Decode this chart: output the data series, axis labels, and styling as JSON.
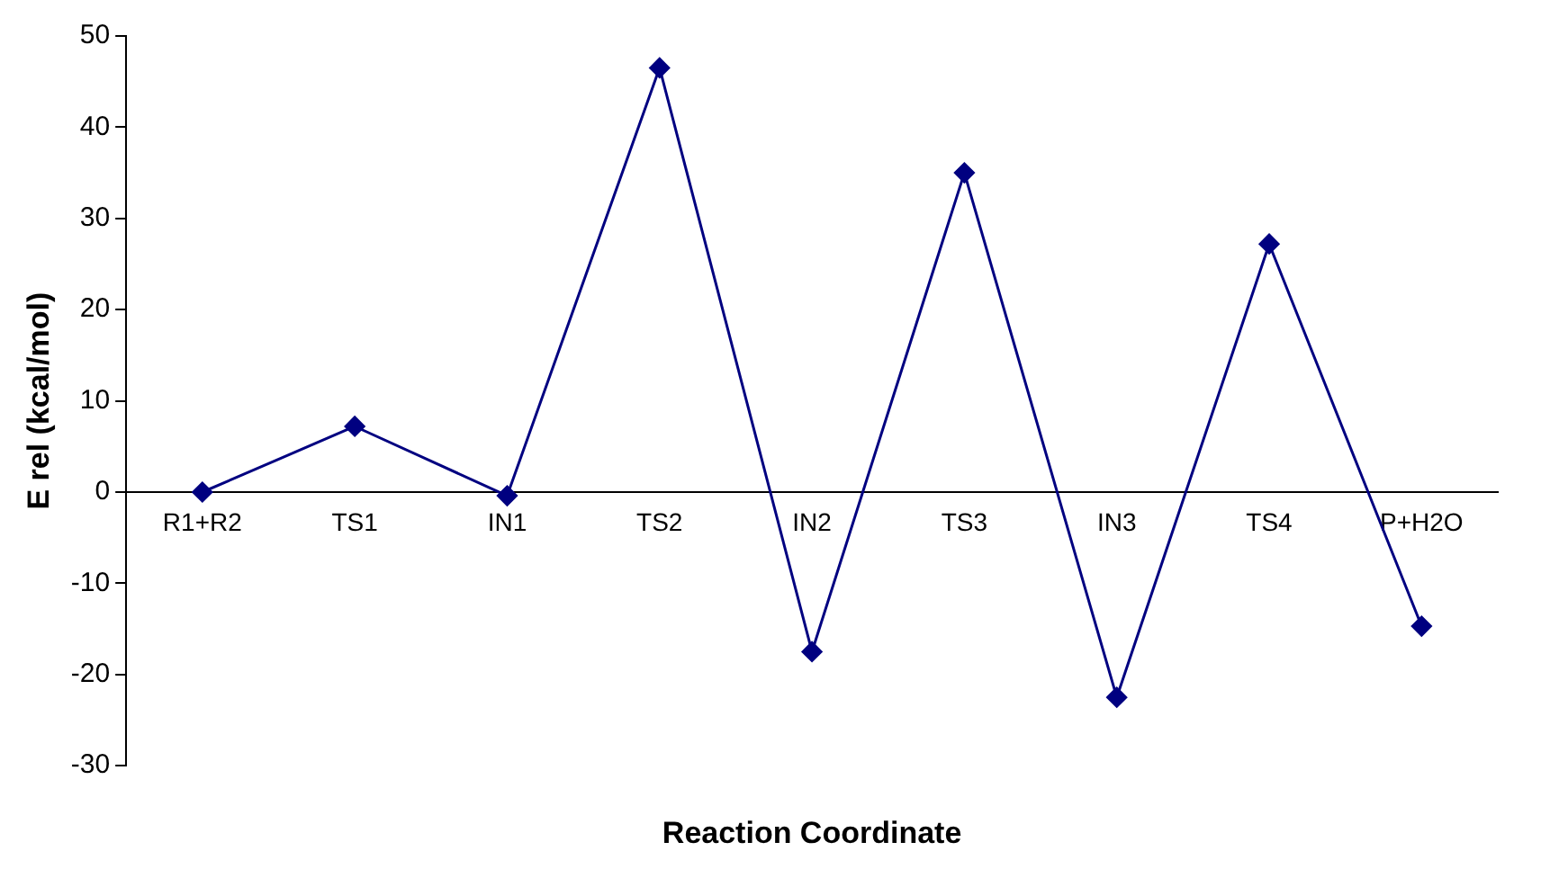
{
  "chart_data": {
    "type": "line",
    "xlabel": "Reaction Coordinate",
    "ylabel": "E rel (kcal/mol)",
    "categories": [
      "R1+R2",
      "TS1",
      "IN1",
      "TS2",
      "IN2",
      "TS3",
      "IN3",
      "TS4",
      "P+H2O"
    ],
    "series": [
      {
        "color": "#000080",
        "values": [
          0,
          7.2,
          -0.4,
          46.5,
          -17.5,
          35,
          -22.5,
          27.2,
          -14.7
        ]
      }
    ],
    "ylim": [
      -30,
      50
    ],
    "yticks": [
      -30,
      -20,
      -10,
      0,
      10,
      20,
      30,
      40,
      50
    ],
    "grid": false,
    "legend": false,
    "marker": "diamond",
    "line_style": "solid"
  }
}
